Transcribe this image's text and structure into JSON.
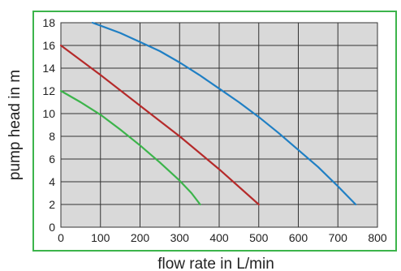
{
  "chart_data": {
    "type": "line",
    "title": "",
    "xlabel": "flow rate in L/min",
    "ylabel": "pump head in m",
    "xlim": [
      0,
      800
    ],
    "ylim": [
      0,
      18
    ],
    "xticks": [
      0,
      100,
      200,
      300,
      400,
      500,
      600,
      700,
      800
    ],
    "yticks": [
      0,
      2,
      4,
      6,
      8,
      10,
      12,
      14,
      16,
      18
    ],
    "grid": true,
    "legend": "none",
    "frame_color": "#3cb44b",
    "plot_background": "#d9d9d9",
    "grid_color": "#333333",
    "series": [
      {
        "color": "#1f7fc4",
        "x": [
          80,
          150,
          200,
          250,
          300,
          350,
          400,
          450,
          500,
          550,
          600,
          650,
          700,
          745
        ],
        "y": [
          18.0,
          17.1,
          16.3,
          15.5,
          14.5,
          13.4,
          12.2,
          11.0,
          9.7,
          8.3,
          6.8,
          5.3,
          3.6,
          2.0
        ]
      },
      {
        "color": "#b52a2a",
        "x": [
          0,
          100,
          200,
          300,
          400,
          500
        ],
        "y": [
          16.0,
          13.4,
          10.7,
          8.0,
          5.1,
          2.0
        ]
      },
      {
        "color": "#3cb44b",
        "x": [
          0,
          50,
          100,
          150,
          200,
          250,
          300,
          330,
          352
        ],
        "y": [
          12.0,
          11.0,
          9.9,
          8.6,
          7.2,
          5.7,
          4.1,
          3.0,
          2.0
        ]
      }
    ]
  }
}
